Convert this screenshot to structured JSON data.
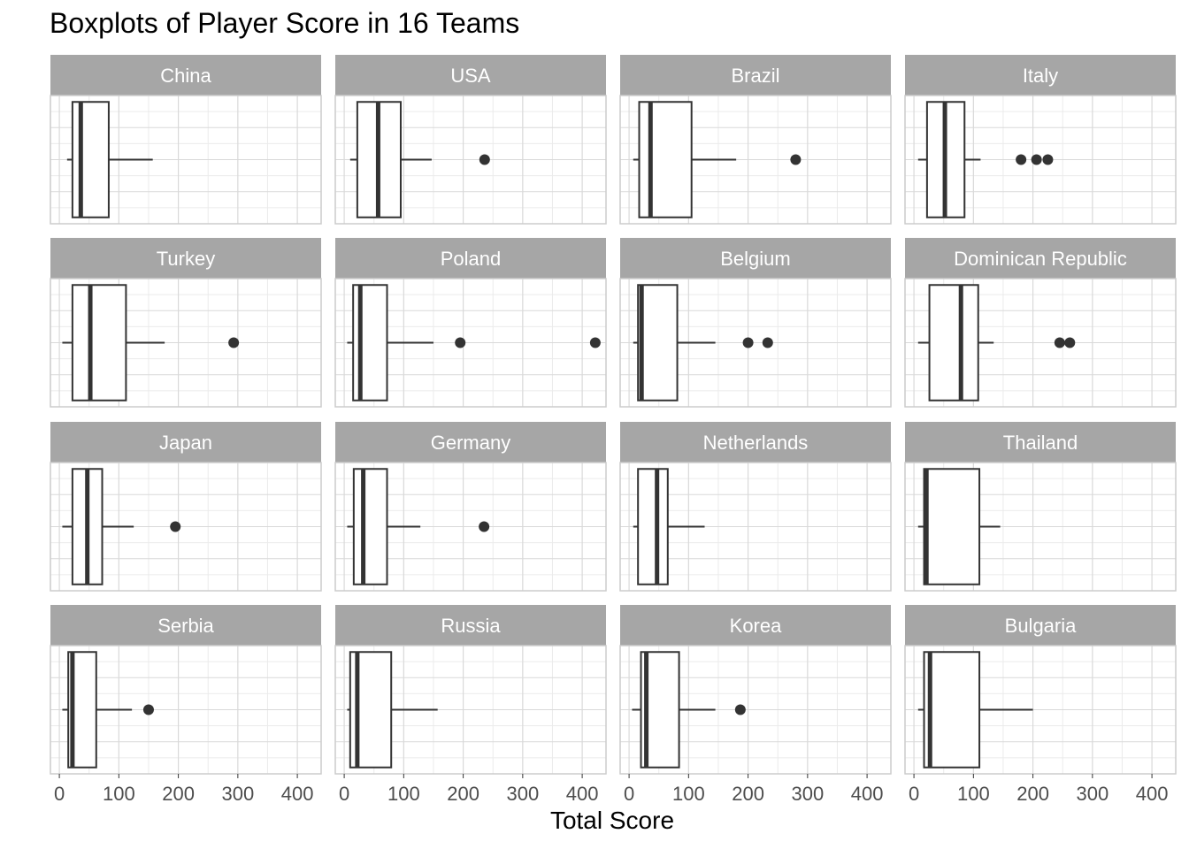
{
  "chart_data": {
    "type": "boxplot",
    "title": "Boxplots of Player Score in 16 Teams",
    "xlabel": "Total Score",
    "ylabel": "",
    "xlim": [
      -15,
      440
    ],
    "x_ticks": [
      0,
      100,
      200,
      300,
      400
    ],
    "x_tick_labels": [
      "0",
      "100",
      "200",
      "300",
      "400"
    ],
    "grid": true,
    "facets": [
      {
        "name": "China",
        "whisker_low": 13,
        "q1": 22,
        "median": 36,
        "q3": 83,
        "whisker_high": 157,
        "outliers": []
      },
      {
        "name": "USA",
        "whisker_low": 10,
        "q1": 22,
        "median": 57,
        "q3": 95,
        "whisker_high": 147,
        "outliers": [
          236
        ]
      },
      {
        "name": "Brazil",
        "whisker_low": 7,
        "q1": 17,
        "median": 36,
        "q3": 105,
        "whisker_high": 180,
        "outliers": [
          280
        ]
      },
      {
        "name": "Italy",
        "whisker_low": 7,
        "q1": 22,
        "median": 52,
        "q3": 85,
        "whisker_high": 112,
        "outliers": [
          180,
          206,
          225
        ]
      },
      {
        "name": "Turkey",
        "whisker_low": 5,
        "q1": 22,
        "median": 52,
        "q3": 112,
        "whisker_high": 177,
        "outliers": [
          293
        ]
      },
      {
        "name": "Poland",
        "whisker_low": 5,
        "q1": 15,
        "median": 27,
        "q3": 72,
        "whisker_high": 150,
        "outliers": [
          195,
          422
        ]
      },
      {
        "name": "Belgium",
        "whisker_low": 7,
        "q1": 15,
        "median": 21,
        "q3": 81,
        "whisker_high": 145,
        "outliers": [
          200,
          233
        ]
      },
      {
        "name": "Dominican Republic",
        "whisker_low": 7,
        "q1": 26,
        "median": 79,
        "q3": 108,
        "whisker_high": 134,
        "outliers": [
          245,
          262
        ]
      },
      {
        "name": "Japan",
        "whisker_low": 5,
        "q1": 22,
        "median": 47,
        "q3": 72,
        "whisker_high": 125,
        "outliers": [
          195
        ]
      },
      {
        "name": "Germany",
        "whisker_low": 5,
        "q1": 16,
        "median": 32,
        "q3": 72,
        "whisker_high": 128,
        "outliers": [
          235
        ]
      },
      {
        "name": "Netherlands",
        "whisker_low": 7,
        "q1": 15,
        "median": 47,
        "q3": 65,
        "whisker_high": 127,
        "outliers": []
      },
      {
        "name": "Thailand",
        "whisker_low": 7,
        "q1": 17,
        "median": 21,
        "q3": 110,
        "whisker_high": 145,
        "outliers": []
      },
      {
        "name": "Serbia",
        "whisker_low": 5,
        "q1": 15,
        "median": 22,
        "q3": 62,
        "whisker_high": 122,
        "outliers": [
          150
        ]
      },
      {
        "name": "Russia",
        "whisker_low": 5,
        "q1": 10,
        "median": 22,
        "q3": 79,
        "whisker_high": 157,
        "outliers": []
      },
      {
        "name": "Korea",
        "whisker_low": 5,
        "q1": 20,
        "median": 29,
        "q3": 84,
        "whisker_high": 145,
        "outliers": [
          187
        ]
      },
      {
        "name": "Bulgaria",
        "whisker_low": 7,
        "q1": 17,
        "median": 27,
        "q3": 110,
        "whisker_high": 200,
        "outliers": []
      }
    ],
    "colors": {
      "strip": "#a6a6a6",
      "strip_text": "#ffffff",
      "grid_major": "#d9d9d9",
      "grid_minor": "#ebebeb",
      "box": "#333333",
      "panel_border": "#cccccc",
      "tick_text": "#4d4d4d"
    }
  }
}
